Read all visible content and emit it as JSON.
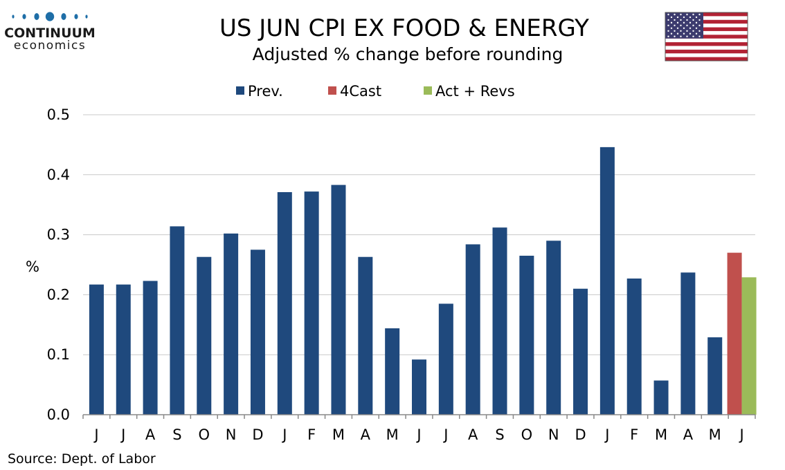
{
  "logo": {
    "name": "CONTINUUM",
    "sub": "economics"
  },
  "flag": {
    "name": "us-flag-icon"
  },
  "colors": {
    "prev": "#1f497d",
    "forecast": "#c0504d",
    "actual": "#9bbb59",
    "grid": "#c8c8c8",
    "axis": "#888888",
    "logo": "#1e6ea7"
  },
  "chart_data": {
    "type": "bar",
    "title": "US JUN CPI EX FOOD & ENERGY",
    "subtitle": "Adjusted % change before rounding",
    "ylabel": "%",
    "ylim": [
      0,
      0.5
    ],
    "yticks": [
      0.0,
      0.1,
      0.2,
      0.3,
      0.4,
      0.5
    ],
    "ytick_labels": [
      "0.0",
      "0.1",
      "0.2",
      "0.3",
      "0.4",
      "0.5"
    ],
    "grid": true,
    "legend_position": "top-center",
    "categories": [
      "J",
      "J",
      "A",
      "S",
      "O",
      "N",
      "D",
      "J",
      "F",
      "M",
      "A",
      "M",
      "J",
      "J",
      "A",
      "S",
      "O",
      "N",
      "D",
      "J",
      "F",
      "M",
      "A",
      "M",
      "J"
    ],
    "series": [
      {
        "name": "Prev.",
        "color": "#1f497d",
        "values": [
          0.217,
          0.217,
          0.223,
          0.314,
          0.263,
          0.302,
          0.275,
          0.371,
          0.372,
          0.383,
          0.263,
          0.144,
          0.092,
          0.185,
          0.284,
          0.312,
          0.265,
          0.29,
          0.21,
          0.446,
          0.227,
          0.057,
          0.237,
          0.129,
          null
        ]
      },
      {
        "name": "4Cast",
        "color": "#c0504d",
        "values": [
          null,
          null,
          null,
          null,
          null,
          null,
          null,
          null,
          null,
          null,
          null,
          null,
          null,
          null,
          null,
          null,
          null,
          null,
          null,
          null,
          null,
          null,
          null,
          null,
          0.27
        ]
      },
      {
        "name": "Act + Revs",
        "color": "#9bbb59",
        "values": [
          null,
          null,
          null,
          null,
          null,
          null,
          null,
          null,
          null,
          null,
          null,
          null,
          null,
          null,
          null,
          null,
          null,
          null,
          null,
          null,
          null,
          null,
          null,
          null,
          0.229
        ]
      }
    ],
    "source": "Source: Dept. of Labor"
  }
}
